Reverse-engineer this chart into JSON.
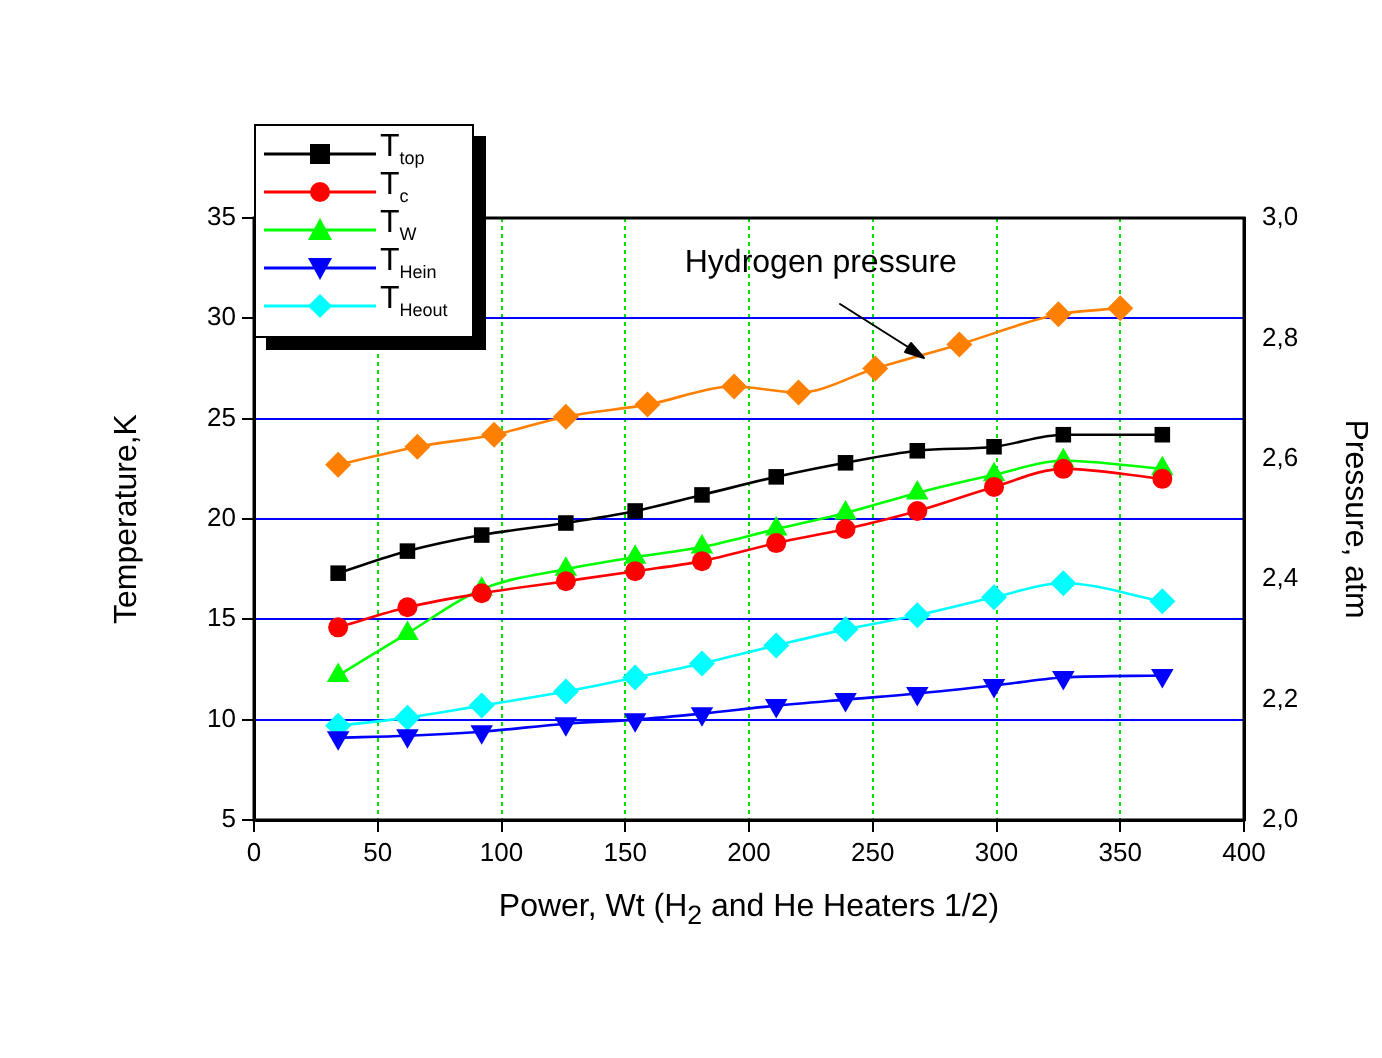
{
  "chart_data": {
    "type": "line",
    "xlabel": "Power, Wt (H$_{2}$ and He Heaters 1/2)",
    "ylabel": "Temperature,K",
    "y2label": "Pressure, atm",
    "annotations": [
      "Hydrogen pressure"
    ],
    "xlim": [
      0,
      400
    ],
    "xticks": [
      0,
      50,
      100,
      150,
      200,
      250,
      300,
      350,
      400
    ],
    "ylim": [
      5,
      35
    ],
    "yticks": [
      5,
      10,
      15,
      20,
      25,
      30,
      35
    ],
    "y2lim": [
      2.0,
      3.0
    ],
    "y2ticks": [
      {
        "value": 2.0,
        "label": "2,0"
      },
      {
        "value": 2.2,
        "label": "2,2"
      },
      {
        "value": 2.4,
        "label": "2,4"
      },
      {
        "value": 2.6,
        "label": "2,6"
      },
      {
        "value": 2.8,
        "label": "2,8"
      },
      {
        "value": 3.0,
        "label": "3,0"
      }
    ],
    "grid": true,
    "legend": "top left",
    "series": [
      {
        "name": "T$_{top}$",
        "color": "#000000",
        "marker": "square",
        "x": [
          34,
          62,
          92,
          126,
          154,
          181,
          211,
          239,
          268,
          299,
          327,
          367
        ],
        "values": [
          17.3,
          18.4,
          19.2,
          19.8,
          20.4,
          21.2,
          22.1,
          22.8,
          23.4,
          23.6,
          24.2,
          24.2
        ]
      },
      {
        "name": "T$_{c}$",
        "color": "#ff0000",
        "marker": "circle",
        "x": [
          34,
          62,
          92,
          126,
          154,
          181,
          211,
          239,
          268,
          299,
          327,
          367
        ],
        "values": [
          14.6,
          15.6,
          16.3,
          16.9,
          17.4,
          17.9,
          18.8,
          19.5,
          20.4,
          21.6,
          22.5,
          22.0
        ]
      },
      {
        "name": "T$_{W}$",
        "color": "#00ff00",
        "marker": "triangle",
        "x": [
          34,
          62,
          92,
          126,
          154,
          181,
          211,
          239,
          268,
          299,
          327,
          367
        ],
        "values": [
          12.2,
          14.3,
          16.5,
          17.5,
          18.1,
          18.6,
          19.5,
          20.3,
          21.3,
          22.2,
          22.9,
          22.5
        ]
      },
      {
        "name": "T$_{He}$$_{in}$",
        "color": "#0000ff",
        "marker": "triangle-down",
        "x": [
          34,
          62,
          92,
          126,
          154,
          181,
          211,
          239,
          268,
          299,
          327,
          367
        ],
        "values": [
          9.1,
          9.2,
          9.4,
          9.8,
          10.0,
          10.3,
          10.7,
          11.0,
          11.3,
          11.7,
          12.1,
          12.2
        ]
      },
      {
        "name": "T$_{He}$$_{out}$",
        "color": "#00ffff",
        "marker": "diamond",
        "x": [
          34,
          62,
          92,
          126,
          154,
          181,
          211,
          239,
          268,
          299,
          327,
          367
        ],
        "values": [
          9.7,
          10.1,
          10.7,
          11.4,
          12.1,
          12.8,
          13.7,
          14.5,
          15.2,
          16.1,
          16.8,
          15.9
        ]
      },
      {
        "color": "#ff8000",
        "marker": "diamond",
        "axis": "y2",
        "x": [
          34,
          66,
          97,
          126,
          159,
          194,
          220,
          251,
          285,
          325,
          350
        ],
        "values": [
          2.59,
          2.62,
          2.64,
          2.67,
          2.69,
          2.72,
          2.71,
          2.75,
          2.79,
          2.84,
          2.85
        ]
      }
    ]
  }
}
